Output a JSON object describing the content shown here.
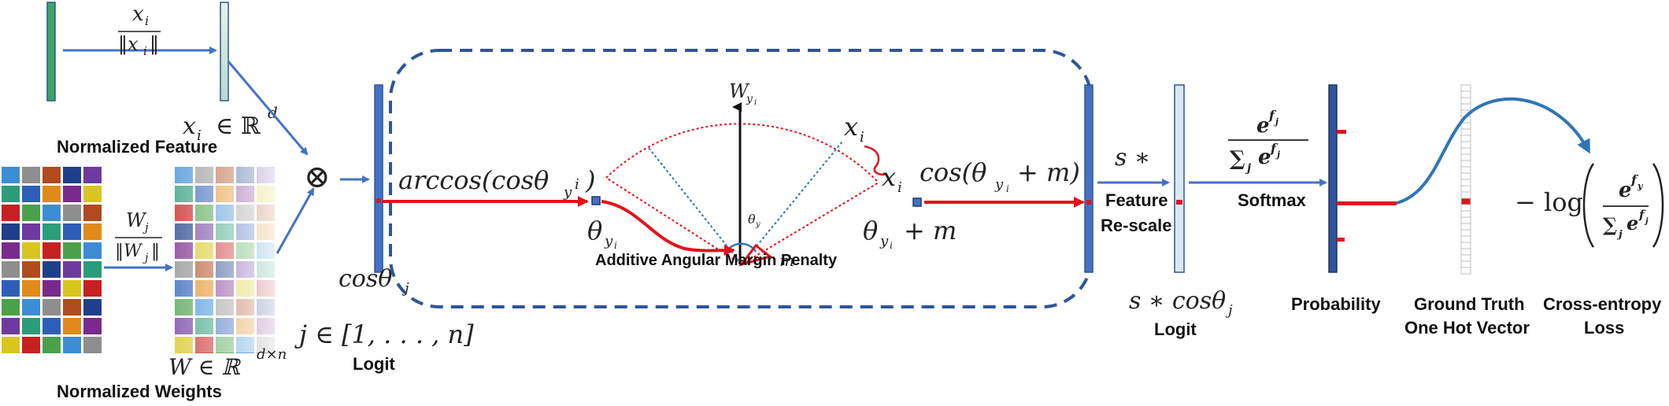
{
  "labels": {
    "normalized_feature": "Normalized Feature",
    "normalized_weights": "Normalized Weights",
    "logit_left": "Logit",
    "additive_angular_margin": "Additive Angular Margin Penalty",
    "feature_rescale_1": "Feature",
    "feature_rescale_2": "Re-scale",
    "logit_right": "Logit",
    "softmax": "Softmax",
    "probability": "Probability",
    "ground_truth_1": "Ground Truth",
    "ground_truth_2": "One Hot Vector",
    "cross_entropy_1": "Cross-entropy",
    "cross_entropy_2": "Loss"
  },
  "math": {
    "x_i": "x",
    "sub_i": "i",
    "norm_x": "‖x",
    "norm_close": "‖",
    "in_rd": "∈ ℝ",
    "sup_d": "d",
    "W_j": "W",
    "sub_j": "j",
    "norm_W": "‖W",
    "W_rdn": "W ∈ ℝ",
    "sup_dn": "d×n",
    "otimes": "⊗",
    "cos_theta_j": "cosθ",
    "j_range": "j ∈ [1, . . . , n]",
    "arccos": "arccos(cosθ",
    "close_paren": ")",
    "theta": "θ",
    "sub_yi": "y",
    "W_top": "W",
    "x_i_mid": "x",
    "m": "m",
    "cos_theta_m": "cos(θ",
    "plus_m_paren": "+ m)",
    "plus_m": "+ m",
    "s_star": "s ∗",
    "s_cos": "s ∗ cosθ",
    "e": "e",
    "sup_fj": "f",
    "sum_e": "∑",
    "neg_log": "− log",
    "sup_fyi": "f"
  },
  "colors": {
    "blue": "#4472c4",
    "dark_blue": "#2f5597",
    "red": "#e0141c",
    "dark_navy": "#1f3864",
    "green": "#3aa66b"
  }
}
